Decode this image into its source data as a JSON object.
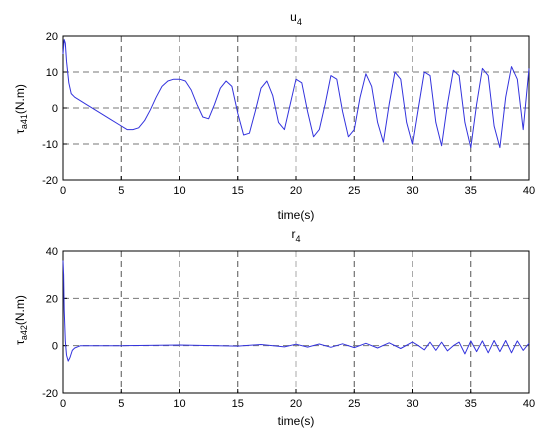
{
  "chart_data": [
    {
      "type": "line",
      "title": "u",
      "title_sub": "4",
      "ylabel_main": "τ",
      "ylabel_sub": "a41",
      "ylabel_unit": "(N.m)",
      "xlabel": "time(s)",
      "xlim": [
        0,
        40
      ],
      "ylim": [
        -20,
        20
      ],
      "xticks": [
        "0",
        "5",
        "10",
        "15",
        "20",
        "25",
        "30",
        "35",
        "40"
      ],
      "yticks": [
        "-20",
        "-10",
        "0",
        "10",
        "20"
      ],
      "grid": true,
      "color": "#3333dd",
      "series": [
        {
          "x": [
            0,
            0.1,
            0.2,
            0.3,
            0.5,
            0.7,
            1,
            1.5,
            2,
            3,
            4,
            5,
            5.5,
            6,
            6.5,
            7,
            7.5,
            8,
            8.5,
            9,
            9.5,
            10,
            10.5,
            11,
            11.5,
            12,
            12.5,
            13,
            13.5,
            14,
            14.5,
            15,
            15.5,
            16,
            16.5,
            17,
            17.5,
            18,
            18.5,
            19,
            19.5,
            20,
            20.5,
            21,
            21.5,
            22,
            22.5,
            23,
            23.5,
            24,
            24.5,
            25,
            25.5,
            26,
            26.5,
            27,
            27.5,
            28,
            28.5,
            29,
            29.5,
            30,
            30.5,
            31,
            31.5,
            32,
            32.5,
            33,
            33.5,
            34,
            34.5,
            35,
            35.5,
            36,
            36.5,
            37,
            37.5,
            38,
            38.5,
            39,
            39.5,
            40
          ],
          "y": [
            15,
            19,
            18,
            13,
            7,
            4,
            3,
            2,
            1,
            -1,
            -3,
            -5,
            -6,
            -6,
            -5.5,
            -3.5,
            -0.5,
            3,
            6,
            7.5,
            8,
            8,
            7.5,
            5,
            1,
            -2.5,
            -3,
            1,
            5.5,
            7.5,
            6,
            -1.5,
            -7.5,
            -7,
            -1,
            5.5,
            7.5,
            3.5,
            -4,
            -6,
            1,
            8,
            7,
            -1,
            -8,
            -6,
            1,
            9,
            8,
            -1,
            -8,
            -6,
            3,
            9.5,
            6,
            -4,
            -9.5,
            1,
            10,
            8,
            -4,
            -10,
            0,
            10,
            9,
            -4,
            -10.5,
            1,
            10.5,
            9,
            -4,
            -11,
            1,
            11,
            9,
            -5,
            -11,
            3,
            11.5,
            8,
            -6,
            11
          ]
        }
      ]
    },
    {
      "type": "line",
      "title": "r",
      "title_sub": "4",
      "ylabel_main": "τ",
      "ylabel_sub": "a42",
      "ylabel_unit": "(N.m)",
      "xlabel": "time(s)",
      "xlim": [
        0,
        40
      ],
      "ylim": [
        -20,
        40
      ],
      "xticks": [
        "0",
        "5",
        "10",
        "15",
        "20",
        "25",
        "30",
        "35",
        "40"
      ],
      "yticks": [
        "-20",
        "0",
        "20",
        "40"
      ],
      "grid": true,
      "color": "#3333dd",
      "series": [
        {
          "x": [
            0,
            0.05,
            0.1,
            0.2,
            0.3,
            0.45,
            0.6,
            0.8,
            1,
            1.5,
            2,
            5,
            10,
            15,
            17,
            19,
            20,
            21,
            22,
            23,
            24,
            25,
            26,
            27,
            28,
            29,
            30,
            30.5,
            31,
            31.5,
            32,
            32.5,
            33,
            33.5,
            34,
            34.5,
            35,
            35.5,
            36,
            36.5,
            37,
            37.5,
            38,
            38.5,
            39,
            39.5,
            40
          ],
          "y": [
            36,
            30,
            15,
            2,
            -4,
            -6.5,
            -5,
            -2,
            -1,
            0,
            0,
            0,
            0.3,
            -0.2,
            0.5,
            -0.5,
            0.6,
            -0.6,
            0.7,
            -0.7,
            0.8,
            -0.8,
            1,
            -1,
            1.2,
            -1.2,
            1.5,
            0,
            -1.8,
            1.5,
            -2,
            1.5,
            -2.2,
            0,
            1.5,
            -3.5,
            2,
            -2.5,
            2,
            -3,
            2.2,
            -2.5,
            2.2,
            -3,
            2,
            -2,
            1
          ]
        }
      ]
    }
  ]
}
